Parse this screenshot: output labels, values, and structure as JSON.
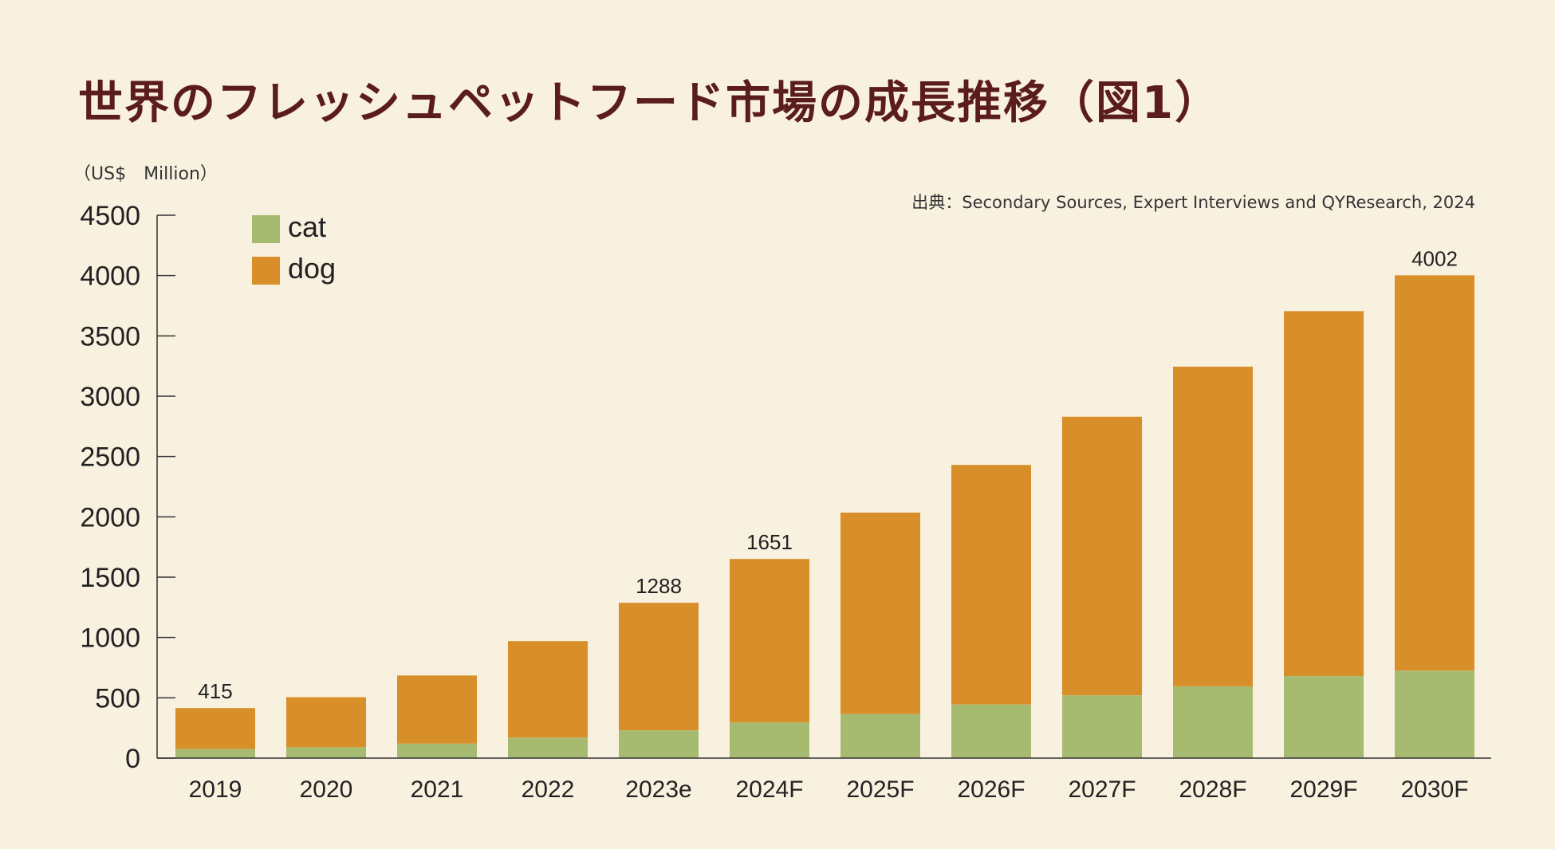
{
  "title": "世界のフレッシュペットフード市場の成長推移（図1）",
  "unit_label": "（US$　Million）",
  "source": "出典：Secondary Sources, Expert Interviews and QYResearch, 2024",
  "colors": {
    "background": "#f9f1e0",
    "cat": "#a7bb70",
    "dog": "#d98f29",
    "title": "#5b1c1c"
  },
  "chart_data": {
    "type": "bar",
    "stacked": true,
    "categories": [
      "2019",
      "2020",
      "2021",
      "2022",
      "2023e",
      "2024F",
      "2025F",
      "2026F",
      "2027F",
      "2028F",
      "2029F",
      "2030F"
    ],
    "series": [
      {
        "name": "cat",
        "values": [
          75,
          90,
          120,
          170,
          230,
          295,
          365,
          445,
          520,
          595,
          680,
          725
        ]
      },
      {
        "name": "dog",
        "values": [
          340,
          415,
          565,
          800,
          1058,
          1356,
          1670,
          1985,
          2310,
          2650,
          3025,
          3277
        ]
      }
    ],
    "totals": [
      415,
      505,
      685,
      970,
      1288,
      1651,
      2035,
      2430,
      2830,
      3245,
      3705,
      4002
    ],
    "data_labels": [
      {
        "category": "2019",
        "text": "415"
      },
      {
        "category": "2023e",
        "text": "1288"
      },
      {
        "category": "2024F",
        "text": "1651"
      },
      {
        "category": "2030F",
        "text": "4002"
      }
    ],
    "yticks": [
      0,
      500,
      1000,
      1500,
      2000,
      2500,
      3000,
      3500,
      4000,
      4500
    ],
    "ylim": [
      0,
      4500
    ],
    "legend_position": "top-left",
    "grid": false
  }
}
